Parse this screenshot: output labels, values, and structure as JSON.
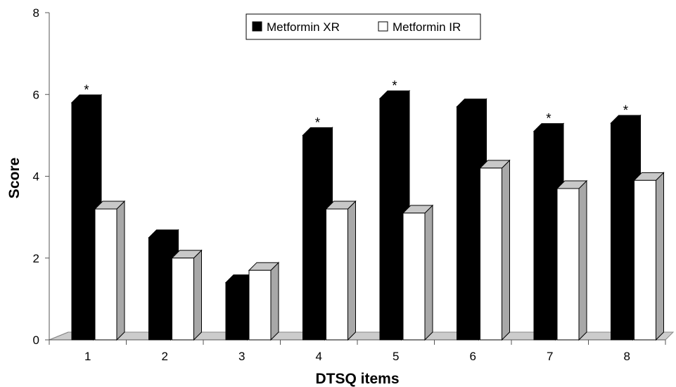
{
  "chart_data": {
    "type": "bar",
    "title": "",
    "xlabel": "DTSQ items",
    "ylabel": "Score",
    "ylim": [
      0,
      8
    ],
    "yticks": [
      "0",
      "2",
      "4",
      "6",
      "8"
    ],
    "categories": [
      "1",
      "2",
      "3",
      "4",
      "5",
      "6",
      "7",
      "8"
    ],
    "series": [
      {
        "name": "Metformin XR",
        "color": "#000000",
        "values": [
          5.8,
          2.5,
          1.4,
          5.0,
          5.9,
          5.7,
          5.1,
          5.3
        ]
      },
      {
        "name": "Metformin IR",
        "color": "#ffffff",
        "values": [
          3.2,
          2.0,
          1.7,
          3.2,
          3.1,
          4.2,
          3.7,
          3.9
        ]
      }
    ],
    "annotations": [
      {
        "category": "1",
        "text": "*"
      },
      {
        "category": "4",
        "text": "*"
      },
      {
        "category": "5",
        "text": "*"
      },
      {
        "category": "7",
        "text": "*"
      },
      {
        "category": "8",
        "text": "*"
      }
    ],
    "legend_position": "top-center",
    "grid": false,
    "style": "3d-bar"
  }
}
